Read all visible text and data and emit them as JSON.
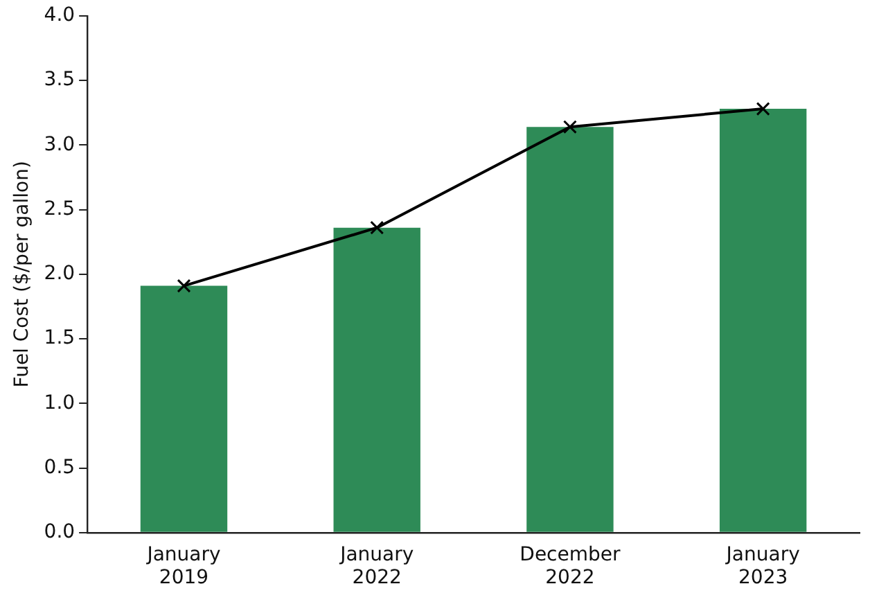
{
  "chart_data": {
    "type": "bar",
    "ylabel": "Fuel Cost ($/per gallon)",
    "categories": [
      "January 2019",
      "January 2022",
      "December 2022",
      "January 2023"
    ],
    "series": [
      {
        "color": "#2e8b57",
        "values": [
          1.91,
          2.36,
          3.14,
          3.28
        ]
      },
      {
        "type": "line",
        "color": "#000000",
        "values": [
          1.91,
          2.36,
          3.14,
          3.28
        ],
        "marker": "cross",
        "line_style": "solid"
      }
    ],
    "ylim": [
      0,
      4.0
    ],
    "yticks": [
      {
        "value": 0,
        "label": "0.0"
      },
      {
        "value": 0.5,
        "label": "0.5"
      },
      {
        "value": 1,
        "label": "1.0"
      },
      {
        "value": 1.5,
        "label": "1.5"
      },
      {
        "value": 2,
        "label": "2.0"
      },
      {
        "value": 2.5,
        "label": "2.5"
      },
      {
        "value": 3,
        "label": "3.0"
      },
      {
        "value": 3.5,
        "label": "3.5"
      },
      {
        "value": 4,
        "label": "4.0"
      }
    ],
    "grid": false
  }
}
